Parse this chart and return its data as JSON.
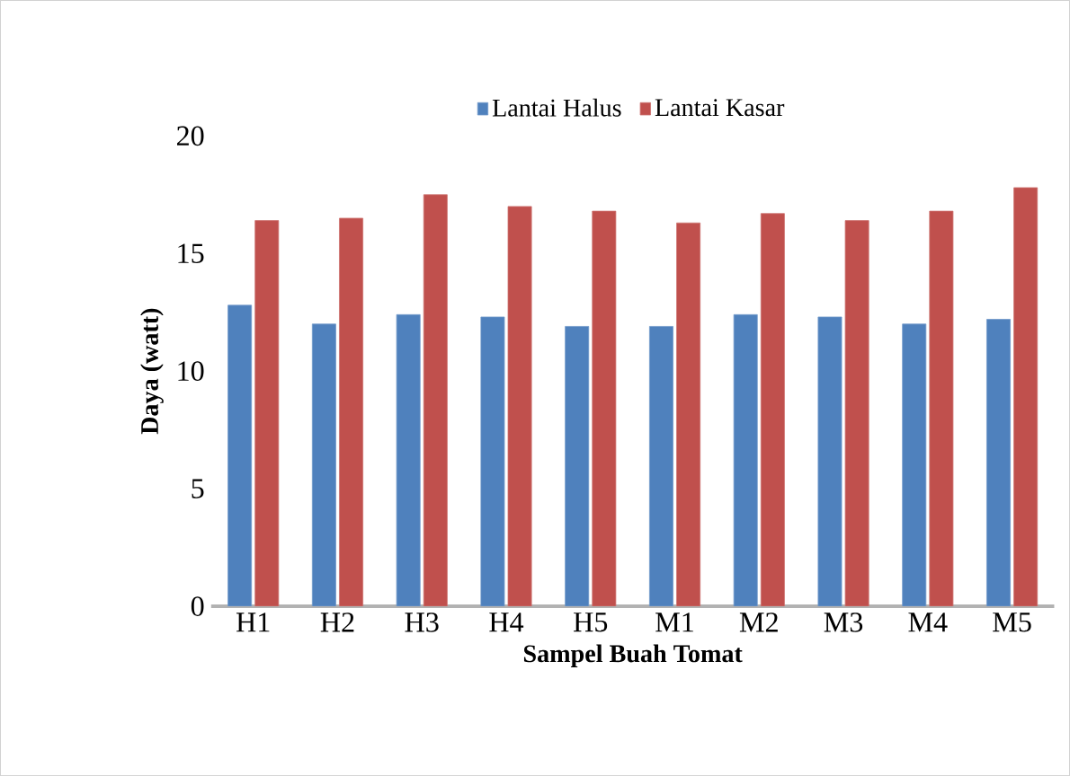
{
  "chart_data": {
    "type": "bar",
    "xlabel": "Sampel Buah Tomat",
    "ylabel": "Daya (watt)",
    "categories": [
      "H1",
      "H2",
      "H3",
      "H4",
      "H5",
      "M1",
      "M2",
      "M3",
      "M4",
      "M5"
    ],
    "series": [
      {
        "name": "Lantai Halus",
        "color": "#4f81bd",
        "values": [
          12.8,
          12.0,
          12.4,
          12.3,
          11.9,
          11.9,
          12.4,
          12.3,
          12.0,
          12.2
        ]
      },
      {
        "name": "Lantai Kasar",
        "color": "#c0504d",
        "values": [
          16.4,
          16.5,
          17.5,
          17.0,
          16.8,
          16.3,
          16.7,
          16.4,
          16.8,
          17.8
        ]
      }
    ],
    "ylim": [
      0,
      20
    ],
    "yticks": [
      0,
      5,
      10,
      15,
      20
    ],
    "grid": false,
    "legend": "top"
  }
}
